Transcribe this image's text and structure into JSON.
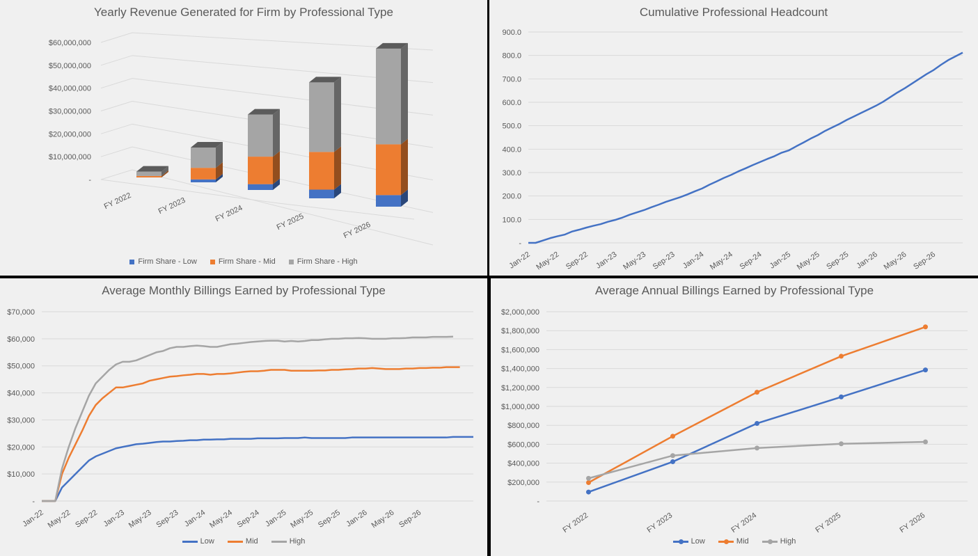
{
  "colors": {
    "low": "#4472c4",
    "mid": "#ed7d31",
    "high": "#a5a5a5",
    "grid": "#d9d9d9",
    "text": "#595959"
  },
  "chart_data": [
    {
      "id": "revenue",
      "type": "bar",
      "stacked": true,
      "projection": "3d",
      "title": "Yearly Revenue Generated for Firm by Professional Type",
      "categories": [
        "FY 2022",
        "FY 2023",
        "FY 2024",
        "FY 2025",
        "FY 2026"
      ],
      "series": [
        {
          "name": "Firm Share - Low",
          "color": "#4472c4",
          "values": [
            0,
            1000000,
            2000000,
            3000000,
            4000000
          ]
        },
        {
          "name": "Firm Share - Mid",
          "color": "#ed7d31",
          "values": [
            500000,
            4000000,
            9500000,
            13000000,
            17500000
          ]
        },
        {
          "name": "Firm Share - High",
          "color": "#a5a5a5",
          "values": [
            1500000,
            7000000,
            14500000,
            24000000,
            33000000
          ]
        }
      ],
      "ylim": [
        0,
        60000000
      ],
      "yticks": [
        "-",
        "$10,000,000",
        "$20,000,000",
        "$30,000,000",
        "$40,000,000",
        "$50,000,000",
        "$60,000,000"
      ],
      "grid": true,
      "legend": "bottom"
    },
    {
      "id": "headcount",
      "type": "line",
      "title": "Cumulative Professional Headcount",
      "x_labels": [
        "Jan-22",
        "May-22",
        "Sep-22",
        "Jan-23",
        "May-23",
        "Sep-23",
        "Jan-24",
        "May-24",
        "Sep-24",
        "Jan-25",
        "May-25",
        "Sep-25",
        "Jan-26",
        "May-26",
        "Sep-26"
      ],
      "series": [
        {
          "color": "#4472c4",
          "values": [
            0,
            0,
            10,
            20,
            28,
            35,
            48,
            56,
            65,
            73,
            80,
            90,
            98,
            108,
            120,
            130,
            140,
            152,
            163,
            175,
            185,
            195,
            207,
            220,
            232,
            248,
            262,
            277,
            290,
            305,
            318,
            332,
            345,
            358,
            370,
            385,
            395,
            412,
            428,
            445,
            460,
            478,
            493,
            508,
            525,
            540,
            555,
            570,
            585,
            602,
            622,
            642,
            660,
            680,
            700,
            720,
            738,
            760,
            780,
            796,
            812
          ]
        }
      ],
      "ylim": [
        0,
        900
      ],
      "yticks": [
        "-",
        "100.0",
        "200.0",
        "300.0",
        "400.0",
        "500.0",
        "600.0",
        "700.0",
        "800.0",
        "900.0"
      ],
      "grid": true
    },
    {
      "id": "monthly",
      "type": "line",
      "title": "Average Monthly Billings Earned by Professional Type",
      "x_labels": [
        "Jan-22",
        "May-22",
        "Sep-22",
        "Jan-23",
        "May-23",
        "Sep-23",
        "Jan-24",
        "May-24",
        "Sep-24",
        "Jan-25",
        "May-25",
        "Sep-25",
        "Jan-26",
        "May-26",
        "Sep-26"
      ],
      "series": [
        {
          "name": "Low",
          "color": "#4472c4",
          "values": [
            0,
            0,
            0,
            5000,
            7500,
            10000,
            12500,
            15000,
            16500,
            17500,
            18500,
            19500,
            20000,
            20500,
            21000,
            21200,
            21500,
            21800,
            22000,
            22000,
            22200,
            22300,
            22500,
            22500,
            22700,
            22700,
            22800,
            22800,
            23000,
            23000,
            23000,
            23000,
            23200,
            23200,
            23200,
            23200,
            23300,
            23300,
            23300,
            23500,
            23300,
            23300,
            23300,
            23300,
            23300,
            23300,
            23500,
            23500,
            23500,
            23500,
            23500,
            23500,
            23500,
            23500,
            23500,
            23500,
            23500,
            23500,
            23500,
            23500,
            23500,
            23700,
            23700,
            23700,
            23700
          ]
        },
        {
          "name": "Mid",
          "color": "#ed7d31",
          "values": [
            0,
            0,
            0,
            10000,
            16000,
            21000,
            26000,
            31500,
            35500,
            38000,
            40000,
            42000,
            42000,
            42500,
            43000,
            43500,
            44500,
            45000,
            45500,
            46000,
            46200,
            46500,
            46700,
            47000,
            47000,
            46700,
            47000,
            47000,
            47200,
            47500,
            47800,
            48000,
            48000,
            48200,
            48500,
            48500,
            48500,
            48200,
            48200,
            48200,
            48200,
            48300,
            48300,
            48500,
            48500,
            48700,
            48800,
            49000,
            49000,
            49200,
            49000,
            48800,
            48800,
            48800,
            49000,
            49000,
            49200,
            49200,
            49300,
            49300,
            49500,
            49500,
            49500
          ]
        },
        {
          "name": "High",
          "color": "#a5a5a5",
          "values": [
            0,
            0,
            0,
            12000,
            20000,
            27000,
            33000,
            39000,
            43500,
            46000,
            48500,
            50500,
            51500,
            51500,
            52000,
            53000,
            54000,
            55000,
            55500,
            56500,
            57000,
            57000,
            57300,
            57500,
            57300,
            57000,
            57000,
            57500,
            58000,
            58200,
            58500,
            58800,
            59000,
            59200,
            59300,
            59300,
            59000,
            59200,
            59000,
            59200,
            59500,
            59500,
            59800,
            60000,
            60000,
            60200,
            60200,
            60300,
            60200,
            60000,
            60000,
            60000,
            60200,
            60200,
            60300,
            60500,
            60500,
            60500,
            60700,
            60700,
            60700,
            60800
          ]
        }
      ],
      "ylim": [
        0,
        70000
      ],
      "yticks": [
        "-",
        "$10,000",
        "$20,000",
        "$30,000",
        "$40,000",
        "$50,000",
        "$60,000",
        "$70,000"
      ],
      "grid": true,
      "legend": "bottom"
    },
    {
      "id": "annual",
      "type": "line",
      "title": "Average Annual Billings Earned by Professional Type",
      "categories": [
        "FY 2022",
        "FY 2023",
        "FY 2024",
        "FY 2025",
        "FY 2026"
      ],
      "series": [
        {
          "name": "Low",
          "color": "#4472c4",
          "values": [
            95000,
            415000,
            820000,
            1100000,
            1385000
          ]
        },
        {
          "name": "Mid",
          "color": "#ed7d31",
          "values": [
            195000,
            685000,
            1150000,
            1530000,
            1840000
          ]
        },
        {
          "name": "High",
          "color": "#a5a5a5",
          "values": [
            240000,
            480000,
            560000,
            605000,
            625000
          ]
        }
      ],
      "ylim": [
        0,
        2000000
      ],
      "yticks": [
        "-",
        "$200,000",
        "$400,000",
        "$600,000",
        "$800,000",
        "$1,000,000",
        "$1,200,000",
        "$1,400,000",
        "$1,600,000",
        "$1,800,000",
        "$2,000,000"
      ],
      "markers": true,
      "grid": true,
      "legend": "bottom"
    }
  ]
}
